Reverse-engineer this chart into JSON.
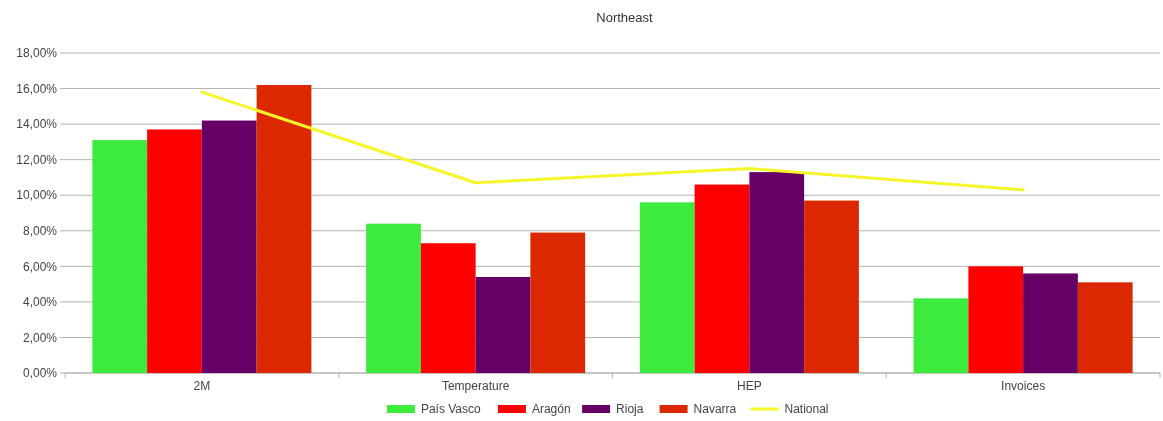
{
  "chart_data": {
    "type": "bar",
    "title": "Northeast",
    "categories": [
      "2M",
      "Temperature",
      "HEP",
      "Invoices"
    ],
    "series": [
      {
        "name": "País Vasco",
        "color": "#3deb3d",
        "values": [
          13.1,
          8.4,
          9.6,
          4.2
        ]
      },
      {
        "name": "Aragón",
        "color": "#ff0000",
        "values": [
          13.7,
          7.3,
          10.6,
          6.0
        ]
      },
      {
        "name": "Rioja",
        "color": "#660066",
        "values": [
          14.2,
          5.4,
          11.3,
          5.6
        ]
      },
      {
        "name": "Navarra",
        "color": "#dc2800",
        "values": [
          16.2,
          7.9,
          9.7,
          5.1
        ]
      },
      {
        "name": "National",
        "type": "line",
        "color": "#f5f52a",
        "values": [
          15.8,
          10.7,
          11.5,
          10.3
        ]
      }
    ],
    "ylim": [
      0,
      18
    ],
    "yticks": [
      {
        "value": 0,
        "label": "0,00%"
      },
      {
        "value": 2,
        "label": "2,00%"
      },
      {
        "value": 4,
        "label": "4,00%"
      },
      {
        "value": 6,
        "label": "6,00%"
      },
      {
        "value": 8,
        "label": "8,00%"
      },
      {
        "value": 10,
        "label": "10,00%"
      },
      {
        "value": 12,
        "label": "12,00%"
      },
      {
        "value": 14,
        "label": "14,00%"
      },
      {
        "value": 16,
        "label": "16,00%"
      },
      {
        "value": 18,
        "label": "18,00%"
      }
    ],
    "grid": true,
    "legend": "bottom"
  }
}
